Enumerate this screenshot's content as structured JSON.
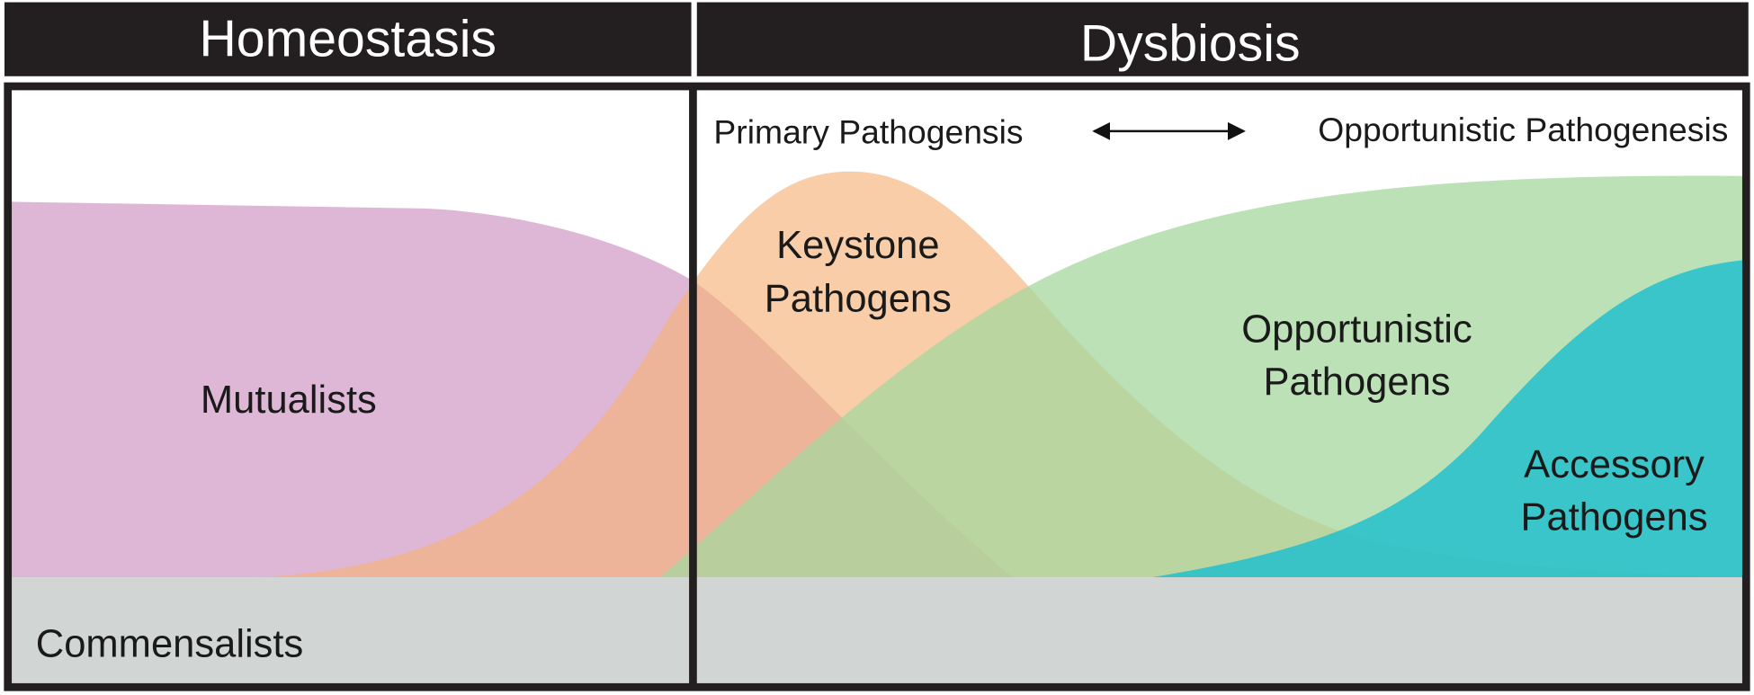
{
  "header": {
    "left": "Homeostasis",
    "right": "Dysbiosis"
  },
  "axis": {
    "left": "Primary Pathogensis",
    "right": "Opportunistic Pathogenesis"
  },
  "regions": {
    "mutualists": "Mutualists",
    "keystone": [
      "Keystone",
      "Pathogens"
    ],
    "opportunistic": [
      "Opportunistic",
      "Pathogens"
    ],
    "accessory": [
      "Accessory",
      "Pathogens"
    ],
    "commensalists": "Commensalists"
  }
}
